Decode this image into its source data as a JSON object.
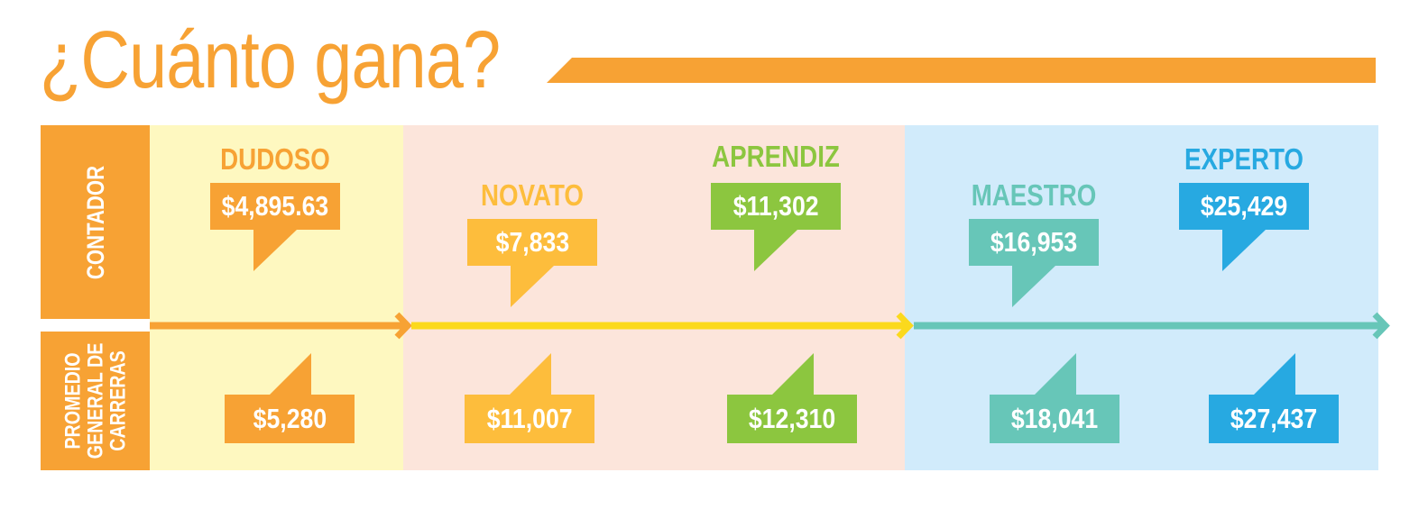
{
  "title": "¿Cuánto gana?",
  "row_labels": {
    "contador": "CONTADOR",
    "promedio": "PROMEDIO\nGENERAL DE\nCARRERAS"
  },
  "levels": [
    {
      "name": "DUDOSO",
      "color": "#f7a234",
      "contador": "$4,895.63",
      "promedio": "$5,280"
    },
    {
      "name": "NOVATO",
      "color": "#fdbd3c",
      "contador": "$7,833",
      "promedio": "$11,007"
    },
    {
      "name": "APRENDIZ",
      "color": "#8cc63f",
      "contador": "$11,302",
      "promedio": "$12,310"
    },
    {
      "name": "MAESTRO",
      "color": "#67c6b8",
      "contador": "$16,953",
      "promedio": "$18,041"
    },
    {
      "name": "EXPERTO",
      "color": "#27a9e1",
      "contador": "$25,429",
      "promedio": "$27,437"
    }
  ],
  "colors": {
    "accent": "#f7a234",
    "panel_yellow": "#fef8c0",
    "panel_peach": "#fce5db",
    "panel_blue": "#d1ebfb",
    "arrow_orange": "#f7a234",
    "arrow_yellow": "#fbd91d",
    "arrow_teal": "#67c6b8"
  }
}
